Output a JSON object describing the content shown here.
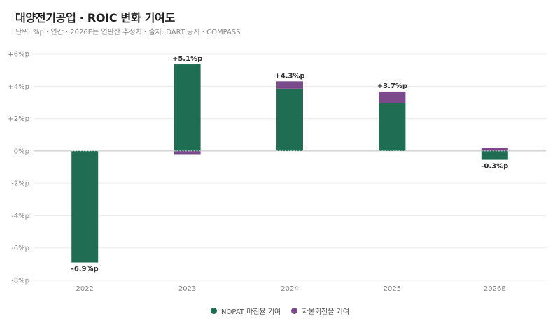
{
  "title": "대양전기공업 · ROIC 변화 기여도",
  "subtitle": "단위: %p · 연간 · 2026E는 연판산 추정치 · 출처: DART 공시 · COMPASS",
  "colors": {
    "nopat": "#1f6e54",
    "turnover": "#7a4a8b",
    "grid": "#ececec",
    "zero": "#bdbdbd"
  },
  "chart_data": {
    "type": "bar",
    "stacked": true,
    "categories": [
      "2022",
      "2023",
      "2024",
      "2025",
      "2026E"
    ],
    "series": [
      {
        "name": "NOPAT 마진율 기여",
        "values": [
          -6.9,
          5.35,
          3.85,
          2.95,
          -0.55
        ]
      },
      {
        "name": "자본회전율 기여",
        "values": [
          0.0,
          -0.2,
          0.45,
          0.72,
          0.2
        ]
      }
    ],
    "totals_labels": [
      "-6.9%p",
      "+5.1%p",
      "+4.3%p",
      "+3.7%p",
      "-0.3%p"
    ],
    "ylim": [
      -8,
      6
    ],
    "yticks": [
      6,
      4,
      2,
      0,
      -2,
      -4,
      -6,
      -8
    ],
    "ytick_labels": [
      "+6%p",
      "+4%p",
      "+2%p",
      "0%p",
      "-2%p",
      "-4%p",
      "-6%p",
      "-8%p"
    ],
    "grid": true,
    "legend_position": "bottom-center"
  }
}
